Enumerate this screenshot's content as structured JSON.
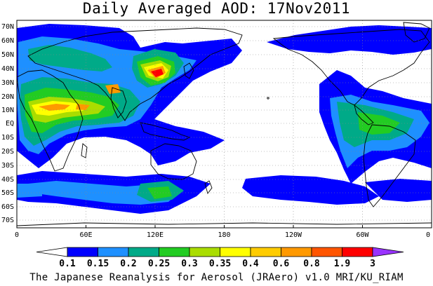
{
  "title": "Daily Averaged AOD: 17Nov2011",
  "footer": "The Japanese Reanalysis for Aerosol (JRAero) v1.0 MRI/KU_RIAM",
  "map": {
    "lon_labels": [
      "0",
      "60E",
      "120E",
      "180",
      "120W",
      "60W",
      "0"
    ],
    "lat_labels": [
      "70N",
      "60N",
      "50N",
      "40N",
      "30N",
      "20N",
      "10N",
      "EQ",
      "10S",
      "20S",
      "30S",
      "40S",
      "50S",
      "60S",
      "70S"
    ]
  },
  "colorbar": {
    "labels": [
      "0.1",
      "0.15",
      "0.2",
      "0.25",
      "0.3",
      "0.35",
      "0.4",
      "0.6",
      "0.8",
      "1.9",
      "3"
    ],
    "colors": [
      "#ffffff",
      "#0000ff",
      "#1e90ff",
      "#00aa88",
      "#22cc22",
      "#aadd00",
      "#ffff00",
      "#ffcc00",
      "#ff9900",
      "#ff5500",
      "#ff0000",
      "#9933ff"
    ]
  },
  "colors": {
    "level1": "#0000ff",
    "level2": "#1e90ff",
    "level3": "#00aa88",
    "level4": "#22cc22",
    "level5": "#aadd00",
    "level6": "#ffff00",
    "level7": "#ffcc00",
    "level8": "#ff9900",
    "level9": "#ff5500",
    "level10": "#ff0000"
  }
}
